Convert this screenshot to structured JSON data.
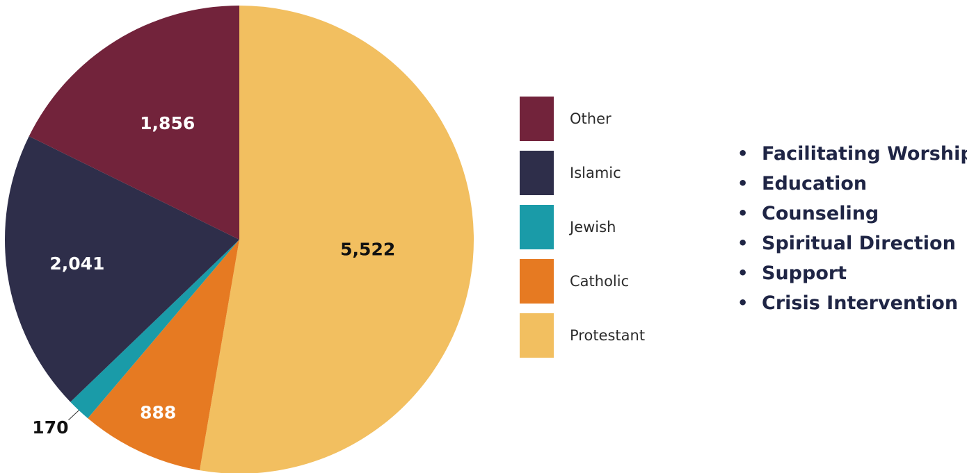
{
  "chart_data": {
    "type": "pie",
    "title": "",
    "slices": [
      {
        "label": "Protestant",
        "value": 5522,
        "display": "5,522",
        "color": "#F2BF60",
        "label_color": "#111111"
      },
      {
        "label": "Catholic",
        "value": 888,
        "display": "888",
        "color": "#E67A22",
        "label_color": "#ffffff"
      },
      {
        "label": "Jewish",
        "value": 170,
        "display": "170",
        "color": "#1A9BA8",
        "label_color": "#111111"
      },
      {
        "label": "Islamic",
        "value": 2041,
        "display": "2,041",
        "color": "#2E2E4A",
        "label_color": "#ffffff"
      },
      {
        "label": "Other",
        "value": 1856,
        "display": "1,856",
        "color": "#72233B",
        "label_color": "#ffffff"
      }
    ],
    "legend_order": [
      "Other",
      "Islamic",
      "Jewish",
      "Catholic",
      "Protestant"
    ],
    "legend_placement": "right"
  },
  "legend": {
    "items": [
      {
        "label": "Other",
        "color": "#72233B"
      },
      {
        "label": "Islamic",
        "color": "#2E2E4A"
      },
      {
        "label": "Jewish",
        "color": "#1A9BA8"
      },
      {
        "label": "Catholic",
        "color": "#E67A22"
      },
      {
        "label": "Protestant",
        "color": "#F2BF60"
      }
    ]
  },
  "services": {
    "bullet": "•",
    "items": [
      "Facilitating Worship",
      "Education",
      "Counseling",
      "Spiritual Direction",
      "Support",
      "Crisis Intervention"
    ],
    "color": "#1F2545"
  }
}
